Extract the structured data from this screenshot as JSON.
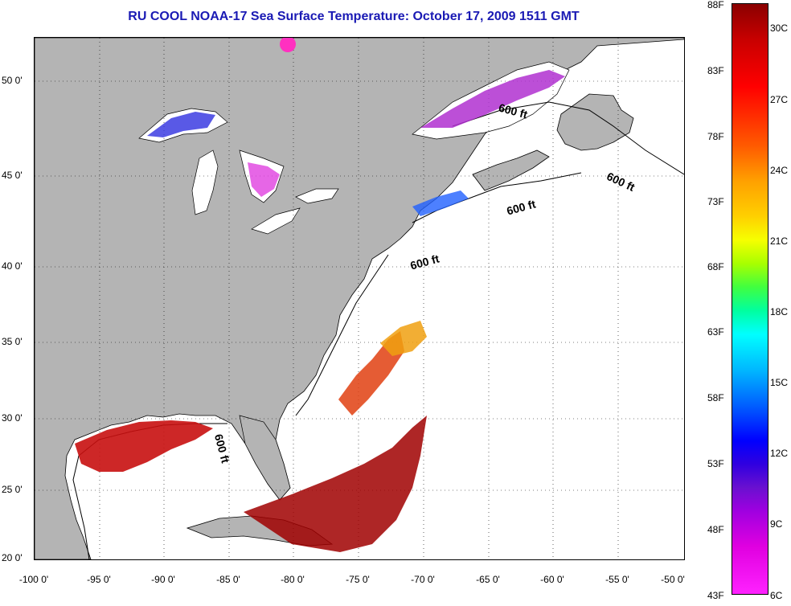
{
  "title": "RU COOL  NOAA-17  Sea Surface Temperature:  October 17, 2009 1511 GMT",
  "map": {
    "x_ticks": [
      "-100 0'",
      "-95 0'",
      "-90 0'",
      "-85 0'",
      "-80 0'",
      "-75 0'",
      "-70 0'",
      "-65 0'",
      "-60 0'",
      "-55 0'",
      "-50 0'"
    ],
    "y_ticks": [
      "50 0'",
      "45 0'",
      "40 0'",
      "35 0'",
      "30 0'",
      "25 0'",
      "20 0'"
    ],
    "isobath_labels": [
      "600 ft",
      "600 ft",
      "600 ft",
      "600 ft",
      "600 ft"
    ],
    "land_color": "#b4b4b4",
    "grid": true
  },
  "colorbar": {
    "f_labels": [
      "88F",
      "83F",
      "78F",
      "73F",
      "68F",
      "63F",
      "58F",
      "53F",
      "48F",
      "43F"
    ],
    "c_labels": [
      "30C",
      "27C",
      "24C",
      "21C",
      "18C",
      "15C",
      "12C",
      "9C",
      "6C"
    ]
  }
}
